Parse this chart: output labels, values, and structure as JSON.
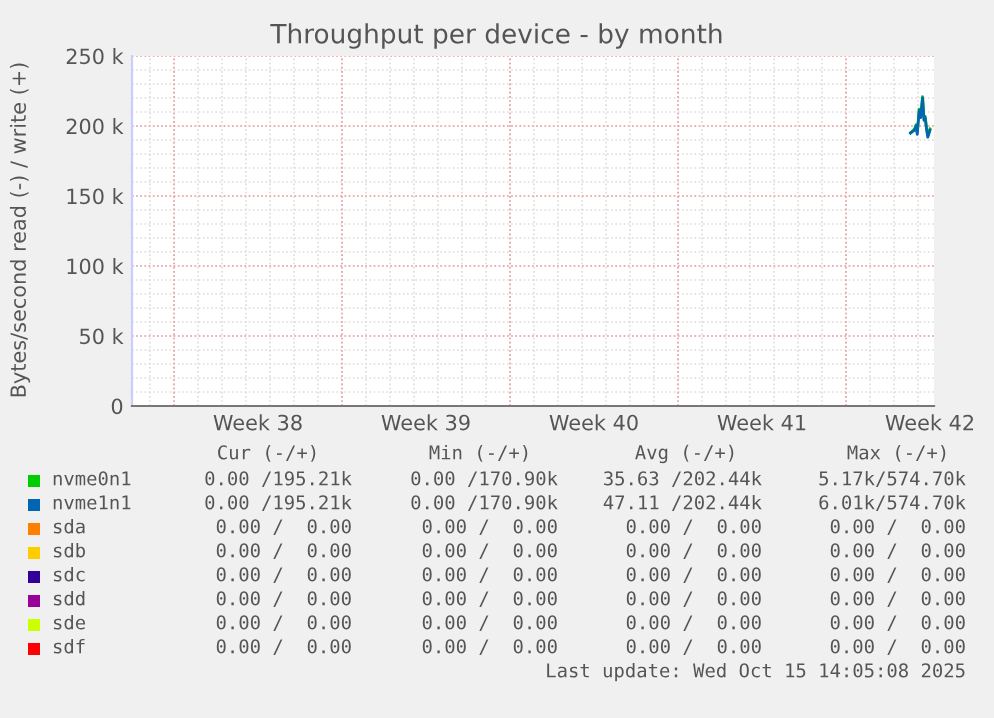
{
  "chart_data": {
    "type": "line",
    "title": "Throughput per device - by month",
    "ylabel": "Bytes/second read (-) / write (+)",
    "x": [
      "2025-10-15T16:30",
      "2025-10-15T20:40",
      "2025-10-15T22:05",
      "2025-10-15T23:15",
      "2025-10-16T01:10",
      "2025-10-16T02:40",
      "2025-10-16T04:35",
      "2025-10-16T06:00",
      "2025-10-16T07:10",
      "2025-10-16T08:40",
      "2025-10-16T09:50",
      "2025-10-16T12:00"
    ],
    "series": [
      {
        "name": "nvme0n1",
        "color": "#00cc00",
        "values": [
          195000,
          198000,
          201000,
          195000,
          212000,
          207000,
          221000,
          205000,
          207000,
          198000,
          193000,
          198000
        ]
      },
      {
        "name": "nvme1n1",
        "color": "#0066b3",
        "values": [
          195000,
          197000,
          200000,
          194000,
          211000,
          206000,
          220000,
          204000,
          206000,
          197000,
          192000,
          197000
        ]
      },
      {
        "name": "sda",
        "color": "#ff8000",
        "values": [
          null,
          null,
          null,
          null,
          null,
          null,
          null,
          null,
          null,
          null,
          null,
          null
        ]
      },
      {
        "name": "sdb",
        "color": "#ffcc00",
        "values": [
          null,
          null,
          null,
          null,
          null,
          null,
          null,
          null,
          null,
          null,
          null,
          null
        ]
      },
      {
        "name": "sdc",
        "color": "#330099",
        "values": [
          null,
          null,
          null,
          null,
          null,
          null,
          null,
          null,
          null,
          null,
          null,
          null
        ]
      },
      {
        "name": "sdd",
        "color": "#990099",
        "values": [
          null,
          null,
          null,
          null,
          null,
          null,
          null,
          null,
          null,
          null,
          null,
          null
        ]
      },
      {
        "name": "sde",
        "color": "#ccff00",
        "values": [
          null,
          null,
          null,
          null,
          null,
          null,
          null,
          null,
          null,
          null,
          null,
          null
        ]
      },
      {
        "name": "sdf",
        "color": "#ff0000",
        "values": [
          null,
          null,
          null,
          null,
          null,
          null,
          null,
          null,
          null,
          null,
          null,
          null
        ]
      }
    ],
    "xlim": [
      "2025-09-13T06:00",
      "2025-10-16T16:00"
    ],
    "xticks": [
      {
        "value": "2025-09-15",
        "label": null
      },
      {
        "value": "2025-09-18T12:00",
        "label": "Week 38"
      },
      {
        "value": "2025-09-22",
        "label": null
      },
      {
        "value": "2025-09-25T12:00",
        "label": "Week 39"
      },
      {
        "value": "2025-09-29",
        "label": null
      },
      {
        "value": "2025-10-02T12:00",
        "label": "Week 40"
      },
      {
        "value": "2025-10-06",
        "label": null
      },
      {
        "value": "2025-10-09T12:00",
        "label": "Week 41"
      },
      {
        "value": "2025-10-13",
        "label": null
      },
      {
        "value": "2025-10-16T12:00",
        "label": "Week 42"
      }
    ],
    "ylim": [
      0,
      250000
    ],
    "yticks": [
      {
        "value": 0,
        "label": "0"
      },
      {
        "value": 50000,
        "label": "50 k"
      },
      {
        "value": 100000,
        "label": "100 k"
      },
      {
        "value": 150000,
        "label": "150 k"
      },
      {
        "value": 200000,
        "label": "200 k"
      },
      {
        "value": 250000,
        "label": "250 k"
      }
    ],
    "grid": true,
    "legend": "bottom",
    "marker": "none",
    "line_style": "solid",
    "annotations": [
      "Cur (-/+)",
      "Min (-/+)",
      "Avg (-/+)",
      "Max (-/+)",
      "0.00 /195.21k",
      "0.00 /170.90k",
      "35.63 /202.44k",
      "5.17k/574.70k",
      "0.00 /195.21k",
      "0.00 /170.90k",
      "47.11 /202.44k",
      "6.01k/574.70k",
      "0.00 /  0.00",
      "0.00 /  0.00",
      "0.00 /  0.00",
      "0.00 /  0.00",
      "0.00 /  0.00",
      "0.00 /  0.00",
      "0.00 /  0.00",
      "0.00 /  0.00",
      "0.00 /  0.00",
      "0.00 /  0.00",
      "0.00 /  0.00",
      "0.00 /  0.00",
      "0.00 /  0.00",
      "0.00 /  0.00",
      "0.00 /  0.00",
      "0.00 /  0.00",
      "0.00 /  0.00",
      "0.00 /  0.00",
      "0.00 /  0.00",
      "0.00 /  0.00",
      "0.00 /  0.00",
      "0.00 /  0.00",
      "0.00 /  0.00",
      "0.00 /  0.00",
      "Last update: Wed Oct 15 14:05:08 2025"
    ]
  }
}
